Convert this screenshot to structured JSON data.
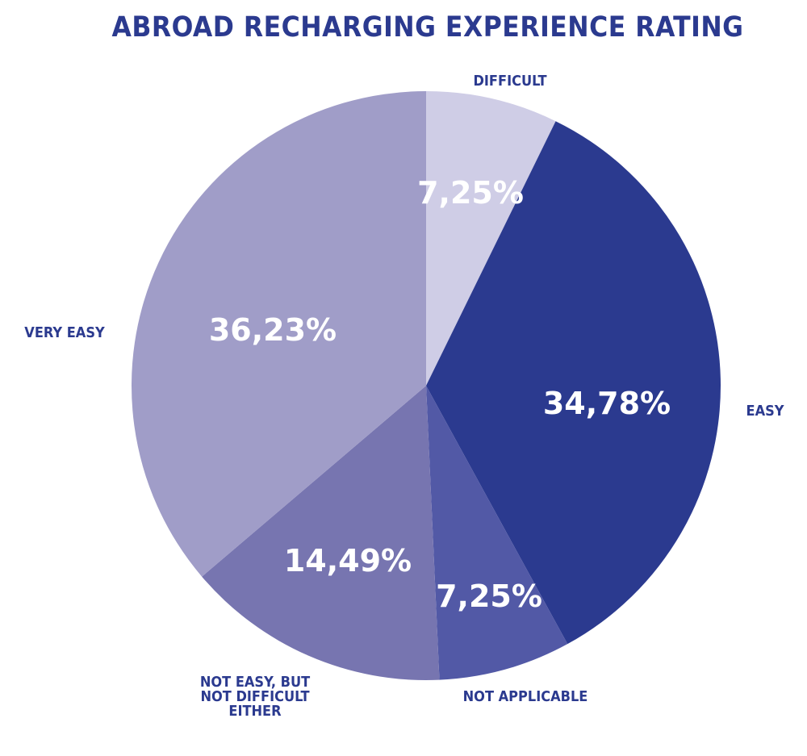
{
  "chart_data": {
    "type": "pie",
    "title": "ABROAD RECHARGING EXPERIENCE RATING",
    "categories": [
      "DIFFICULT",
      "EASY",
      "NOT APPLICABLE",
      "NOT EASY, BUT NOT DIFFICULT EITHER",
      "VERY EASY"
    ],
    "category_label_lines": [
      [
        "DIFFICULT"
      ],
      [
        "EASY"
      ],
      [
        "NOT APPLICABLE"
      ],
      [
        "NOT EASY, BUT",
        "NOT DIFFICULT",
        "EITHER"
      ],
      [
        "VERY EASY"
      ]
    ],
    "values": [
      7.25,
      34.78,
      7.25,
      14.49,
      36.23
    ],
    "value_labels": [
      "7,25%",
      "34,78%",
      "7,25%",
      "14,49%",
      "36,23%"
    ],
    "colors": [
      "#cfcde6",
      "#2b3a8f",
      "#5259a6",
      "#7775b0",
      "#a09dc8"
    ],
    "start": "top, clockwise"
  }
}
